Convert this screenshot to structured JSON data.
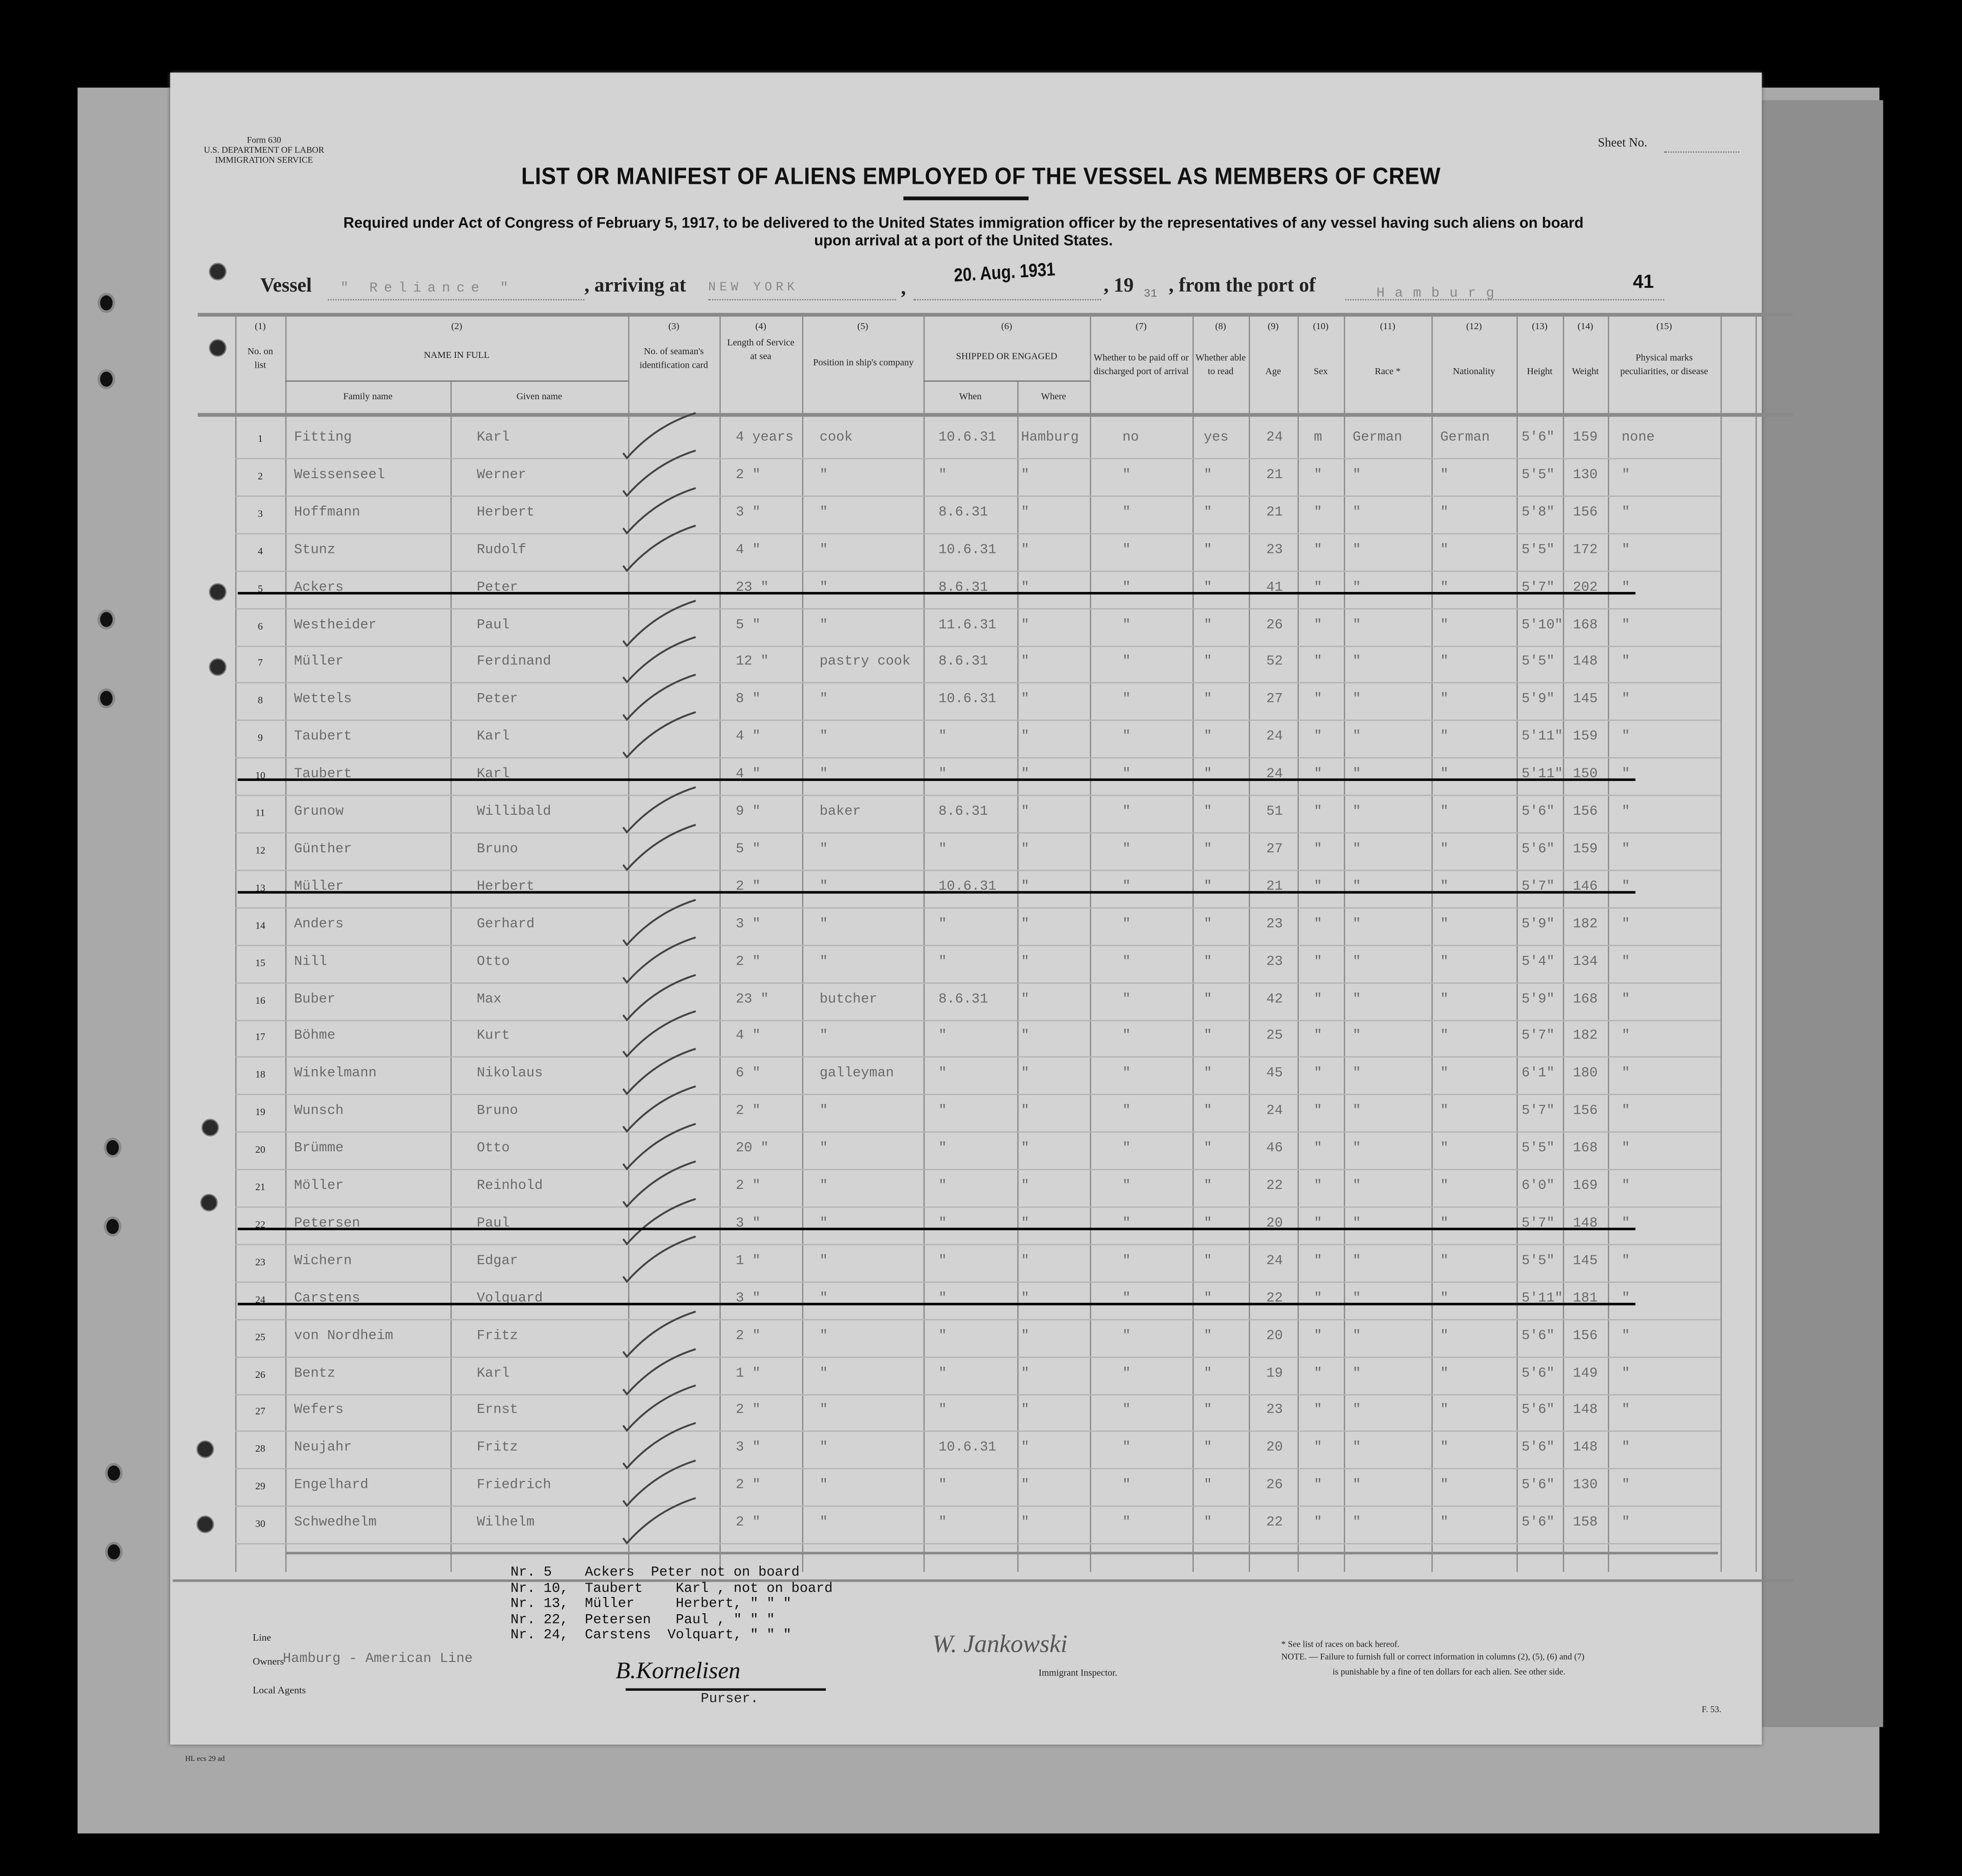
{
  "form": {
    "form_no": "Form 630",
    "department": "U.S. DEPARTMENT OF LABOR",
    "service": "IMMIGRATION SERVICE",
    "sheet_label": "Sheet No.",
    "title": "LIST OR MANIFEST OF ALIENS EMPLOYED OF THE VESSEL AS MEMBERS OF CREW",
    "subtitle_1": "Required under Act of Congress of February 5, 1917, to be delivered to the United States immigration officer by the representatives of any vessel having such aliens on board",
    "subtitle_2": "upon arrival at a port of the United States."
  },
  "voyage": {
    "vessel_label": "Vessel",
    "vessel": "\" Reliance \"",
    "arriving_label": ", arriving at",
    "arriving_at": "NEW YORK",
    "date_stamp": "20. Aug. 1931",
    "year_label": ", 19",
    "year": "31",
    "from_label": ", from the port of",
    "port": "Hamburg",
    "sheet_number": "41"
  },
  "columns": {
    "n1": "(1)",
    "n2": "(2)",
    "n3": "(3)",
    "n4": "(4)",
    "n5": "(5)",
    "n6": "(6)",
    "n7": "(7)",
    "n8": "(8)",
    "n9": "(9)",
    "n10": "(10)",
    "n11": "(11)",
    "n12": "(12)",
    "n13": "(13)",
    "n14": "(14)",
    "n15": "(15)",
    "no_on_list": "No. on list",
    "name_in_full": "NAME IN FULL",
    "family_name": "Family name",
    "given_name": "Given name",
    "id_card": "No. of seaman's identification card",
    "length_service": "Length of Service at sea",
    "position": "Position in ship's company",
    "shipped": "SHIPPED OR ENGAGED",
    "when": "When",
    "where": "Where",
    "paid_off": "Whether to be paid off or discharged port of arrival",
    "able_read": "Whether able to read",
    "age": "Age",
    "sex": "Sex",
    "race": "Race *",
    "nationality": "Nationality",
    "height": "Height",
    "weight": "Weight",
    "marks": "Physical marks peculiarities, or disease"
  },
  "rows": [
    {
      "no": "1",
      "struck": false,
      "checked": true,
      "cells": [
        "Fitting",
        "Karl",
        "4 years",
        "cook",
        "10.6.31",
        "Hamburg",
        "no",
        "yes",
        "24",
        "m",
        "German",
        "German",
        "5'6\"",
        "159",
        "none"
      ]
    },
    {
      "no": "2",
      "struck": false,
      "checked": true,
      "cells": [
        "Weissenseel",
        "Werner",
        "2 \"",
        "\"",
        "\"",
        "\"",
        "\"",
        "\"",
        "21",
        "\"",
        "\"",
        "\"",
        "5'5\"",
        "130",
        "\""
      ]
    },
    {
      "no": "3",
      "struck": false,
      "checked": true,
      "cells": [
        "Hoffmann",
        "Herbert",
        "3 \"",
        "\"",
        "8.6.31",
        "\"",
        "\"",
        "\"",
        "21",
        "\"",
        "\"",
        "\"",
        "5'8\"",
        "156",
        "\""
      ]
    },
    {
      "no": "4",
      "struck": false,
      "checked": true,
      "cells": [
        "Stunz",
        "Rudolf",
        "4 \"",
        "\"",
        "10.6.31",
        "\"",
        "\"",
        "\"",
        "23",
        "\"",
        "\"",
        "\"",
        "5'5\"",
        "172",
        "\""
      ]
    },
    {
      "no": "5",
      "struck": true,
      "checked": false,
      "cells": [
        "Ackers",
        "Peter",
        "23 \"",
        "\"",
        "8.6.31",
        "\"",
        "\"",
        "\"",
        "41",
        "\"",
        "\"",
        "\"",
        "5'7\"",
        "202",
        "\""
      ]
    },
    {
      "no": "6",
      "struck": false,
      "checked": true,
      "cells": [
        "Westheider",
        "Paul",
        "5 \"",
        "\"",
        "11.6.31",
        "\"",
        "\"",
        "\"",
        "26",
        "\"",
        "\"",
        "\"",
        "5'10\"",
        "168",
        "\""
      ]
    },
    {
      "no": "7",
      "struck": false,
      "checked": true,
      "cells": [
        "Müller",
        "Ferdinand",
        "12 \"",
        "pastry cook",
        "8.6.31",
        "\"",
        "\"",
        "\"",
        "52",
        "\"",
        "\"",
        "\"",
        "5'5\"",
        "148",
        "\""
      ]
    },
    {
      "no": "8",
      "struck": false,
      "checked": true,
      "cells": [
        "Wettels",
        "Peter",
        "8 \"",
        "\"",
        "10.6.31",
        "\"",
        "\"",
        "\"",
        "27",
        "\"",
        "\"",
        "\"",
        "5'9\"",
        "145",
        "\""
      ]
    },
    {
      "no": "9",
      "struck": false,
      "checked": true,
      "cells": [
        "Taubert",
        "Karl",
        "4 \"",
        "\"",
        "\"",
        "\"",
        "\"",
        "\"",
        "24",
        "\"",
        "\"",
        "\"",
        "5'11\"",
        "159",
        "\""
      ]
    },
    {
      "no": "10",
      "struck": true,
      "checked": false,
      "cells": [
        "Taubert",
        "Karl",
        "4 \"",
        "\"",
        "\"",
        "\"",
        "\"",
        "\"",
        "24",
        "\"",
        "\"",
        "\"",
        "5'11\"",
        "150",
        "\""
      ]
    },
    {
      "no": "11",
      "struck": false,
      "checked": true,
      "cells": [
        "Grunow",
        "Willibald",
        "9 \"",
        "baker",
        "8.6.31",
        "\"",
        "\"",
        "\"",
        "51",
        "\"",
        "\"",
        "\"",
        "5'6\"",
        "156",
        "\""
      ]
    },
    {
      "no": "12",
      "struck": false,
      "checked": true,
      "cells": [
        "Günther",
        "Bruno",
        "5 \"",
        "\"",
        "\"",
        "\"",
        "\"",
        "\"",
        "27",
        "\"",
        "\"",
        "\"",
        "5'6\"",
        "159",
        "\""
      ]
    },
    {
      "no": "13",
      "struck": true,
      "checked": false,
      "cells": [
        "Müller",
        "Herbert",
        "2 \"",
        "\"",
        "10.6.31",
        "\"",
        "\"",
        "\"",
        "21",
        "\"",
        "\"",
        "\"",
        "5'7\"",
        "146",
        "\""
      ]
    },
    {
      "no": "14",
      "struck": false,
      "checked": true,
      "cells": [
        "Anders",
        "Gerhard",
        "3 \"",
        "\"",
        "\"",
        "\"",
        "\"",
        "\"",
        "23",
        "\"",
        "\"",
        "\"",
        "5'9\"",
        "182",
        "\""
      ]
    },
    {
      "no": "15",
      "struck": false,
      "checked": true,
      "cells": [
        "Nill",
        "Otto",
        "2 \"",
        "\"",
        "\"",
        "\"",
        "\"",
        "\"",
        "23",
        "\"",
        "\"",
        "\"",
        "5'4\"",
        "134",
        "\""
      ]
    },
    {
      "no": "16",
      "struck": false,
      "checked": true,
      "cells": [
        "Buber",
        "Max",
        "23 \"",
        "butcher",
        "8.6.31",
        "\"",
        "\"",
        "\"",
        "42",
        "\"",
        "\"",
        "\"",
        "5'9\"",
        "168",
        "\""
      ]
    },
    {
      "no": "17",
      "struck": false,
      "checked": true,
      "cells": [
        "Böhme",
        "Kurt",
        "4 \"",
        "\"",
        "\"",
        "\"",
        "\"",
        "\"",
        "25",
        "\"",
        "\"",
        "\"",
        "5'7\"",
        "182",
        "\""
      ]
    },
    {
      "no": "18",
      "struck": false,
      "checked": true,
      "cells": [
        "Winkelmann",
        "Nikolaus",
        "6 \"",
        "galleyman",
        "\"",
        "\"",
        "\"",
        "\"",
        "45",
        "\"",
        "\"",
        "\"",
        "6'1\"",
        "180",
        "\""
      ]
    },
    {
      "no": "19",
      "struck": false,
      "checked": true,
      "cells": [
        "Wunsch",
        "Bruno",
        "2 \"",
        "\"",
        "\"",
        "\"",
        "\"",
        "\"",
        "24",
        "\"",
        "\"",
        "\"",
        "5'7\"",
        "156",
        "\""
      ]
    },
    {
      "no": "20",
      "struck": false,
      "checked": true,
      "cells": [
        "Brümme",
        "Otto",
        "20 \"",
        "\"",
        "\"",
        "\"",
        "\"",
        "\"",
        "46",
        "\"",
        "\"",
        "\"",
        "5'5\"",
        "168",
        "\""
      ]
    },
    {
      "no": "21",
      "struck": false,
      "checked": true,
      "cells": [
        "Möller",
        "Reinhold",
        "2 \"",
        "\"",
        "\"",
        "\"",
        "\"",
        "\"",
        "22",
        "\"",
        "\"",
        "\"",
        "6'0\"",
        "169",
        "\""
      ]
    },
    {
      "no": "22",
      "struck": true,
      "checked": true,
      "cells": [
        "Petersen",
        "Paul",
        "3 \"",
        "\"",
        "\"",
        "\"",
        "\"",
        "\"",
        "20",
        "\"",
        "\"",
        "\"",
        "5'7\"",
        "148",
        "\""
      ]
    },
    {
      "no": "23",
      "struck": false,
      "checked": true,
      "cells": [
        "Wichern",
        "Edgar",
        "1 \"",
        "\"",
        "\"",
        "\"",
        "\"",
        "\"",
        "24",
        "\"",
        "\"",
        "\"",
        "5'5\"",
        "145",
        "\""
      ]
    },
    {
      "no": "24",
      "struck": true,
      "checked": false,
      "cells": [
        "Carstens",
        "Volquard",
        "3 \"",
        "\"",
        "\"",
        "\"",
        "\"",
        "\"",
        "22",
        "\"",
        "\"",
        "\"",
        "5'11\"",
        "181",
        "\""
      ]
    },
    {
      "no": "25",
      "struck": false,
      "checked": true,
      "cells": [
        "von Nordheim",
        "Fritz",
        "2 \"",
        "\"",
        "\"",
        "\"",
        "\"",
        "\"",
        "20",
        "\"",
        "\"",
        "\"",
        "5'6\"",
        "156",
        "\""
      ]
    },
    {
      "no": "26",
      "struck": false,
      "checked": true,
      "cells": [
        "Bentz",
        "Karl",
        "1 \"",
        "\"",
        "\"",
        "\"",
        "\"",
        "\"",
        "19",
        "\"",
        "\"",
        "\"",
        "5'6\"",
        "149",
        "\""
      ]
    },
    {
      "no": "27",
      "struck": false,
      "checked": true,
      "cells": [
        "Wefers",
        "Ernst",
        "2 \"",
        "\"",
        "\"",
        "\"",
        "\"",
        "\"",
        "23",
        "\"",
        "\"",
        "\"",
        "5'6\"",
        "148",
        "\""
      ]
    },
    {
      "no": "28",
      "struck": false,
      "checked": true,
      "cells": [
        "Neujahr",
        "Fritz",
        "3 \"",
        "\"",
        "10.6.31",
        "\"",
        "\"",
        "\"",
        "20",
        "\"",
        "\"",
        "\"",
        "5'6\"",
        "148",
        "\""
      ]
    },
    {
      "no": "29",
      "struck": false,
      "checked": true,
      "cells": [
        "Engelhard",
        "Friedrich",
        "2 \"",
        "\"",
        "\"",
        "\"",
        "\"",
        "\"",
        "26",
        "\"",
        "\"",
        "\"",
        "5'6\"",
        "130",
        "\""
      ]
    },
    {
      "no": "30",
      "struck": false,
      "checked": true,
      "cells": [
        "Schwedhelm",
        "Wilhelm",
        "2 \"",
        "\"",
        "\"",
        "\"",
        "\"",
        "\"",
        "22",
        "\"",
        "\"",
        "\"",
        "5'6\"",
        "158",
        "\""
      ]
    }
  ],
  "notes": [
    "Nr. 5    Ackers  Peter not on board",
    "Nr. 10,  Taubert    Karl , not on board",
    "Nr. 13,  Müller     Herbert, \" \" \"",
    "Nr. 22,  Petersen   Paul , \" \" \"",
    "Nr. 24,  Carstens  Volquart, \" \" \""
  ],
  "footer": {
    "line_label": "Line",
    "owners_label": "Owners",
    "owners": "Hamburg - American Line",
    "agents_label": "Local Agents",
    "purser_signature": "B.Kornelisen",
    "purser_label": "Purser.",
    "inspector_signature": "W. Jankowski",
    "inspector_label": "Immigrant Inspector.",
    "races_note": "* See list of races on back hereof.",
    "note_1": "NOTE. — Failure to furnish full or correct information in columns (2), (5), (6) and (7)",
    "note_2": "is punishable by a fine of ten dollars for each alien.  See other side.",
    "form_code": "F. 53.",
    "print_code": "HL ecs 29 ad"
  },
  "colors": {
    "paper": "#d3d3d3",
    "background": "#000000",
    "ink": "#111111",
    "typewriter": "#6a6a6a",
    "strike": "#000000"
  }
}
